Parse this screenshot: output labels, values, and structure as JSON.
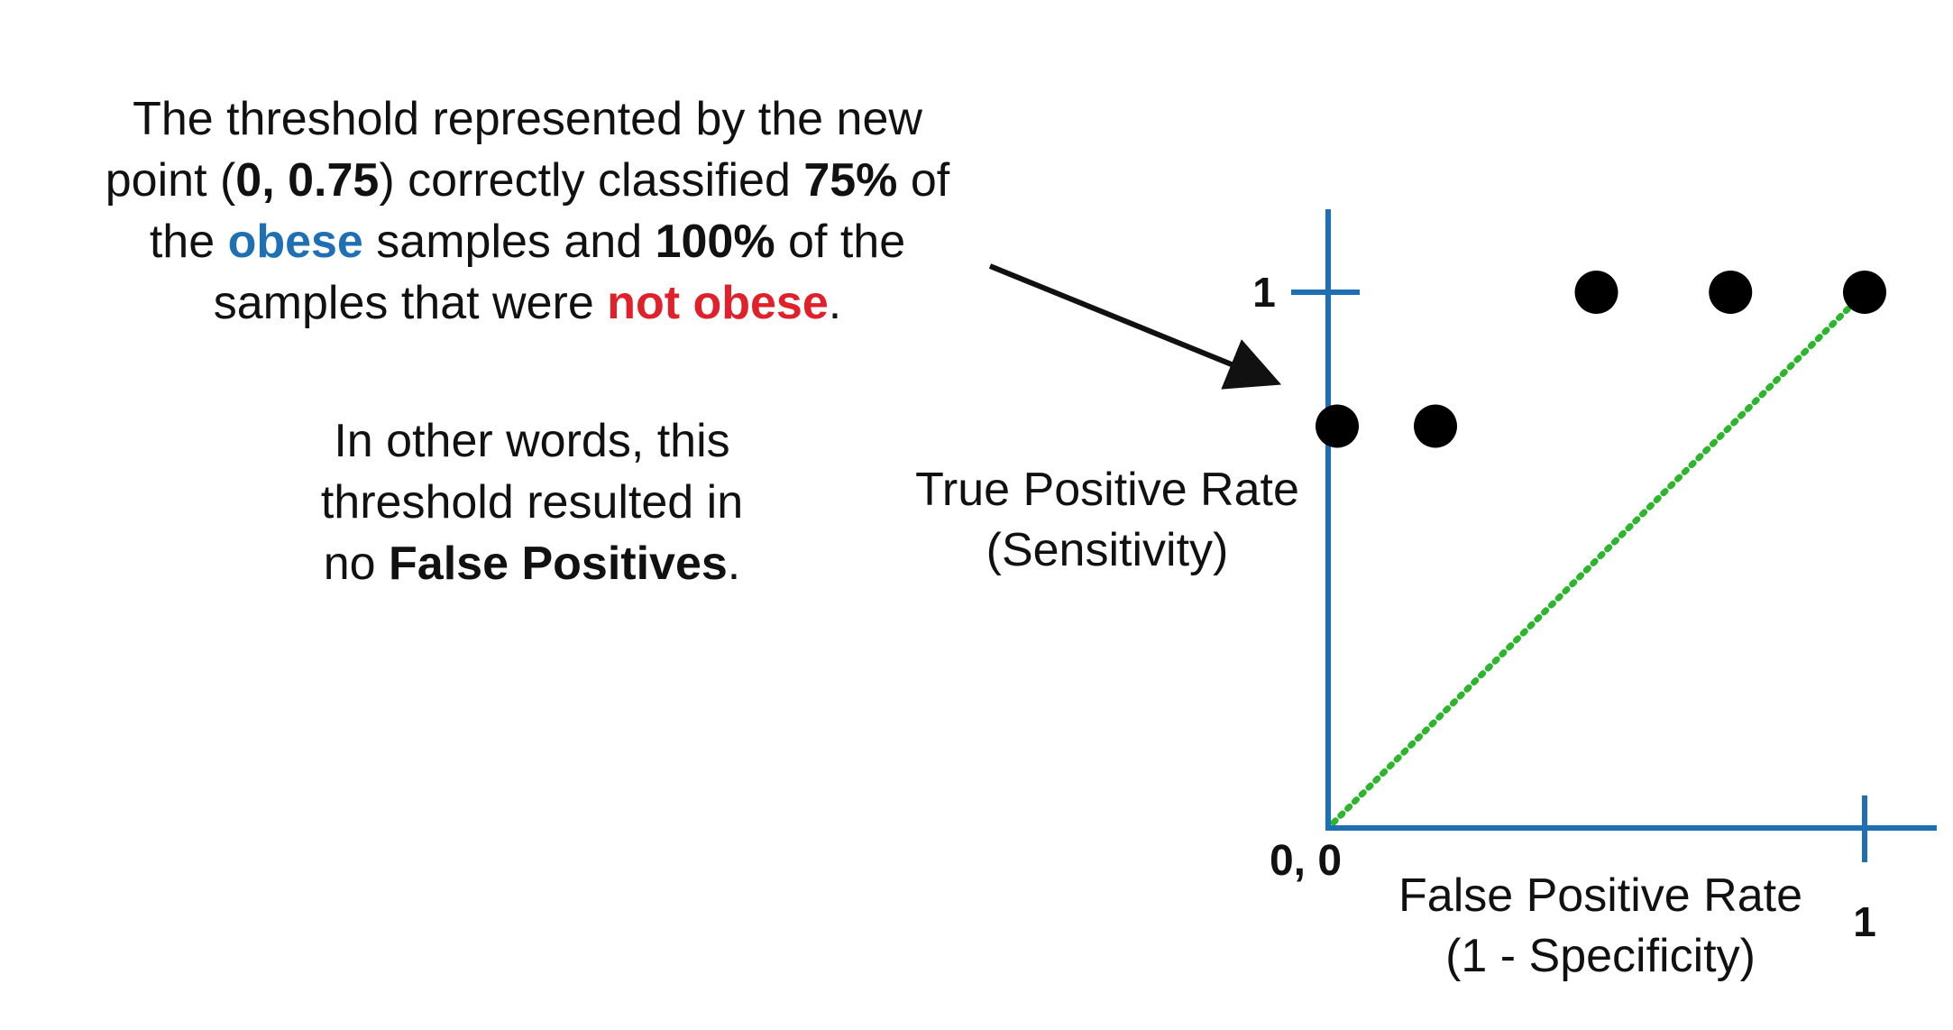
{
  "caption_top": {
    "line1": "The threshold represented by the new",
    "line2_a": "point (",
    "line2_point": "0, 0.75",
    "line2_b": ") correctly classified ",
    "line2_pct": "75%",
    "line2_c": " of",
    "line3_a": "the ",
    "line3_obese": "obese",
    "line3_b": " samples and ",
    "line3_pct": "100%",
    "line3_c": " of the",
    "line4_a": "samples that were ",
    "line4_not_obese": "not obese",
    "line4_b": "."
  },
  "caption_bottom": {
    "line1": "In other words, this",
    "line2": "threshold resulted in",
    "line3_a": "no ",
    "line3_bold": "False Positives",
    "line3_b": "."
  },
  "colors": {
    "axis": "#1f6fb4",
    "points": "#000000",
    "diagonal": "#2db52d",
    "obese": "#1f6fb4",
    "not_obese": "#e0202a"
  },
  "chart_data": {
    "type": "scatter",
    "xlabel_line1": "False Positive Rate",
    "xlabel_line2": "(1 - Specificity)",
    "ylabel_line1": "True Positive Rate",
    "ylabel_line2": "(Sensitivity)",
    "origin_label": "0, 0",
    "x_tick_label": "1",
    "y_tick_label": "1",
    "xlim": [
      0,
      1
    ],
    "ylim": [
      0,
      1
    ],
    "points": [
      {
        "x": 0.0,
        "y": 0.75
      },
      {
        "x": 0.2,
        "y": 0.75
      },
      {
        "x": 0.5,
        "y": 1.0
      },
      {
        "x": 0.75,
        "y": 1.0
      },
      {
        "x": 1.0,
        "y": 1.0
      }
    ],
    "reference_line": {
      "from": [
        0,
        0
      ],
      "to": [
        1,
        1
      ],
      "style": "dotted"
    }
  }
}
